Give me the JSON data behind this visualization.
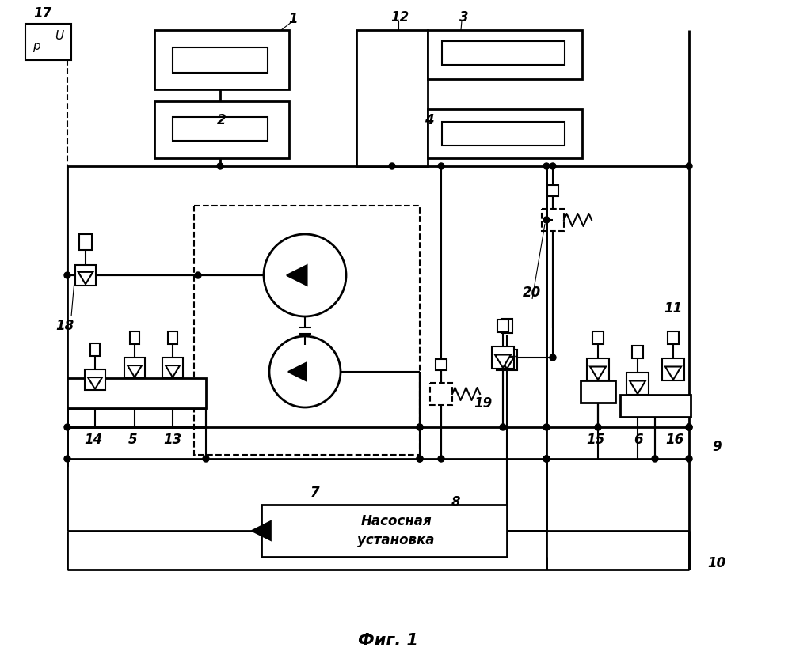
{
  "title": "Фиг. 1",
  "pump_box_text": "Насосная\nустановка",
  "lw_main": 2.0,
  "lw_thin": 1.5,
  "lw_label": 0.8
}
